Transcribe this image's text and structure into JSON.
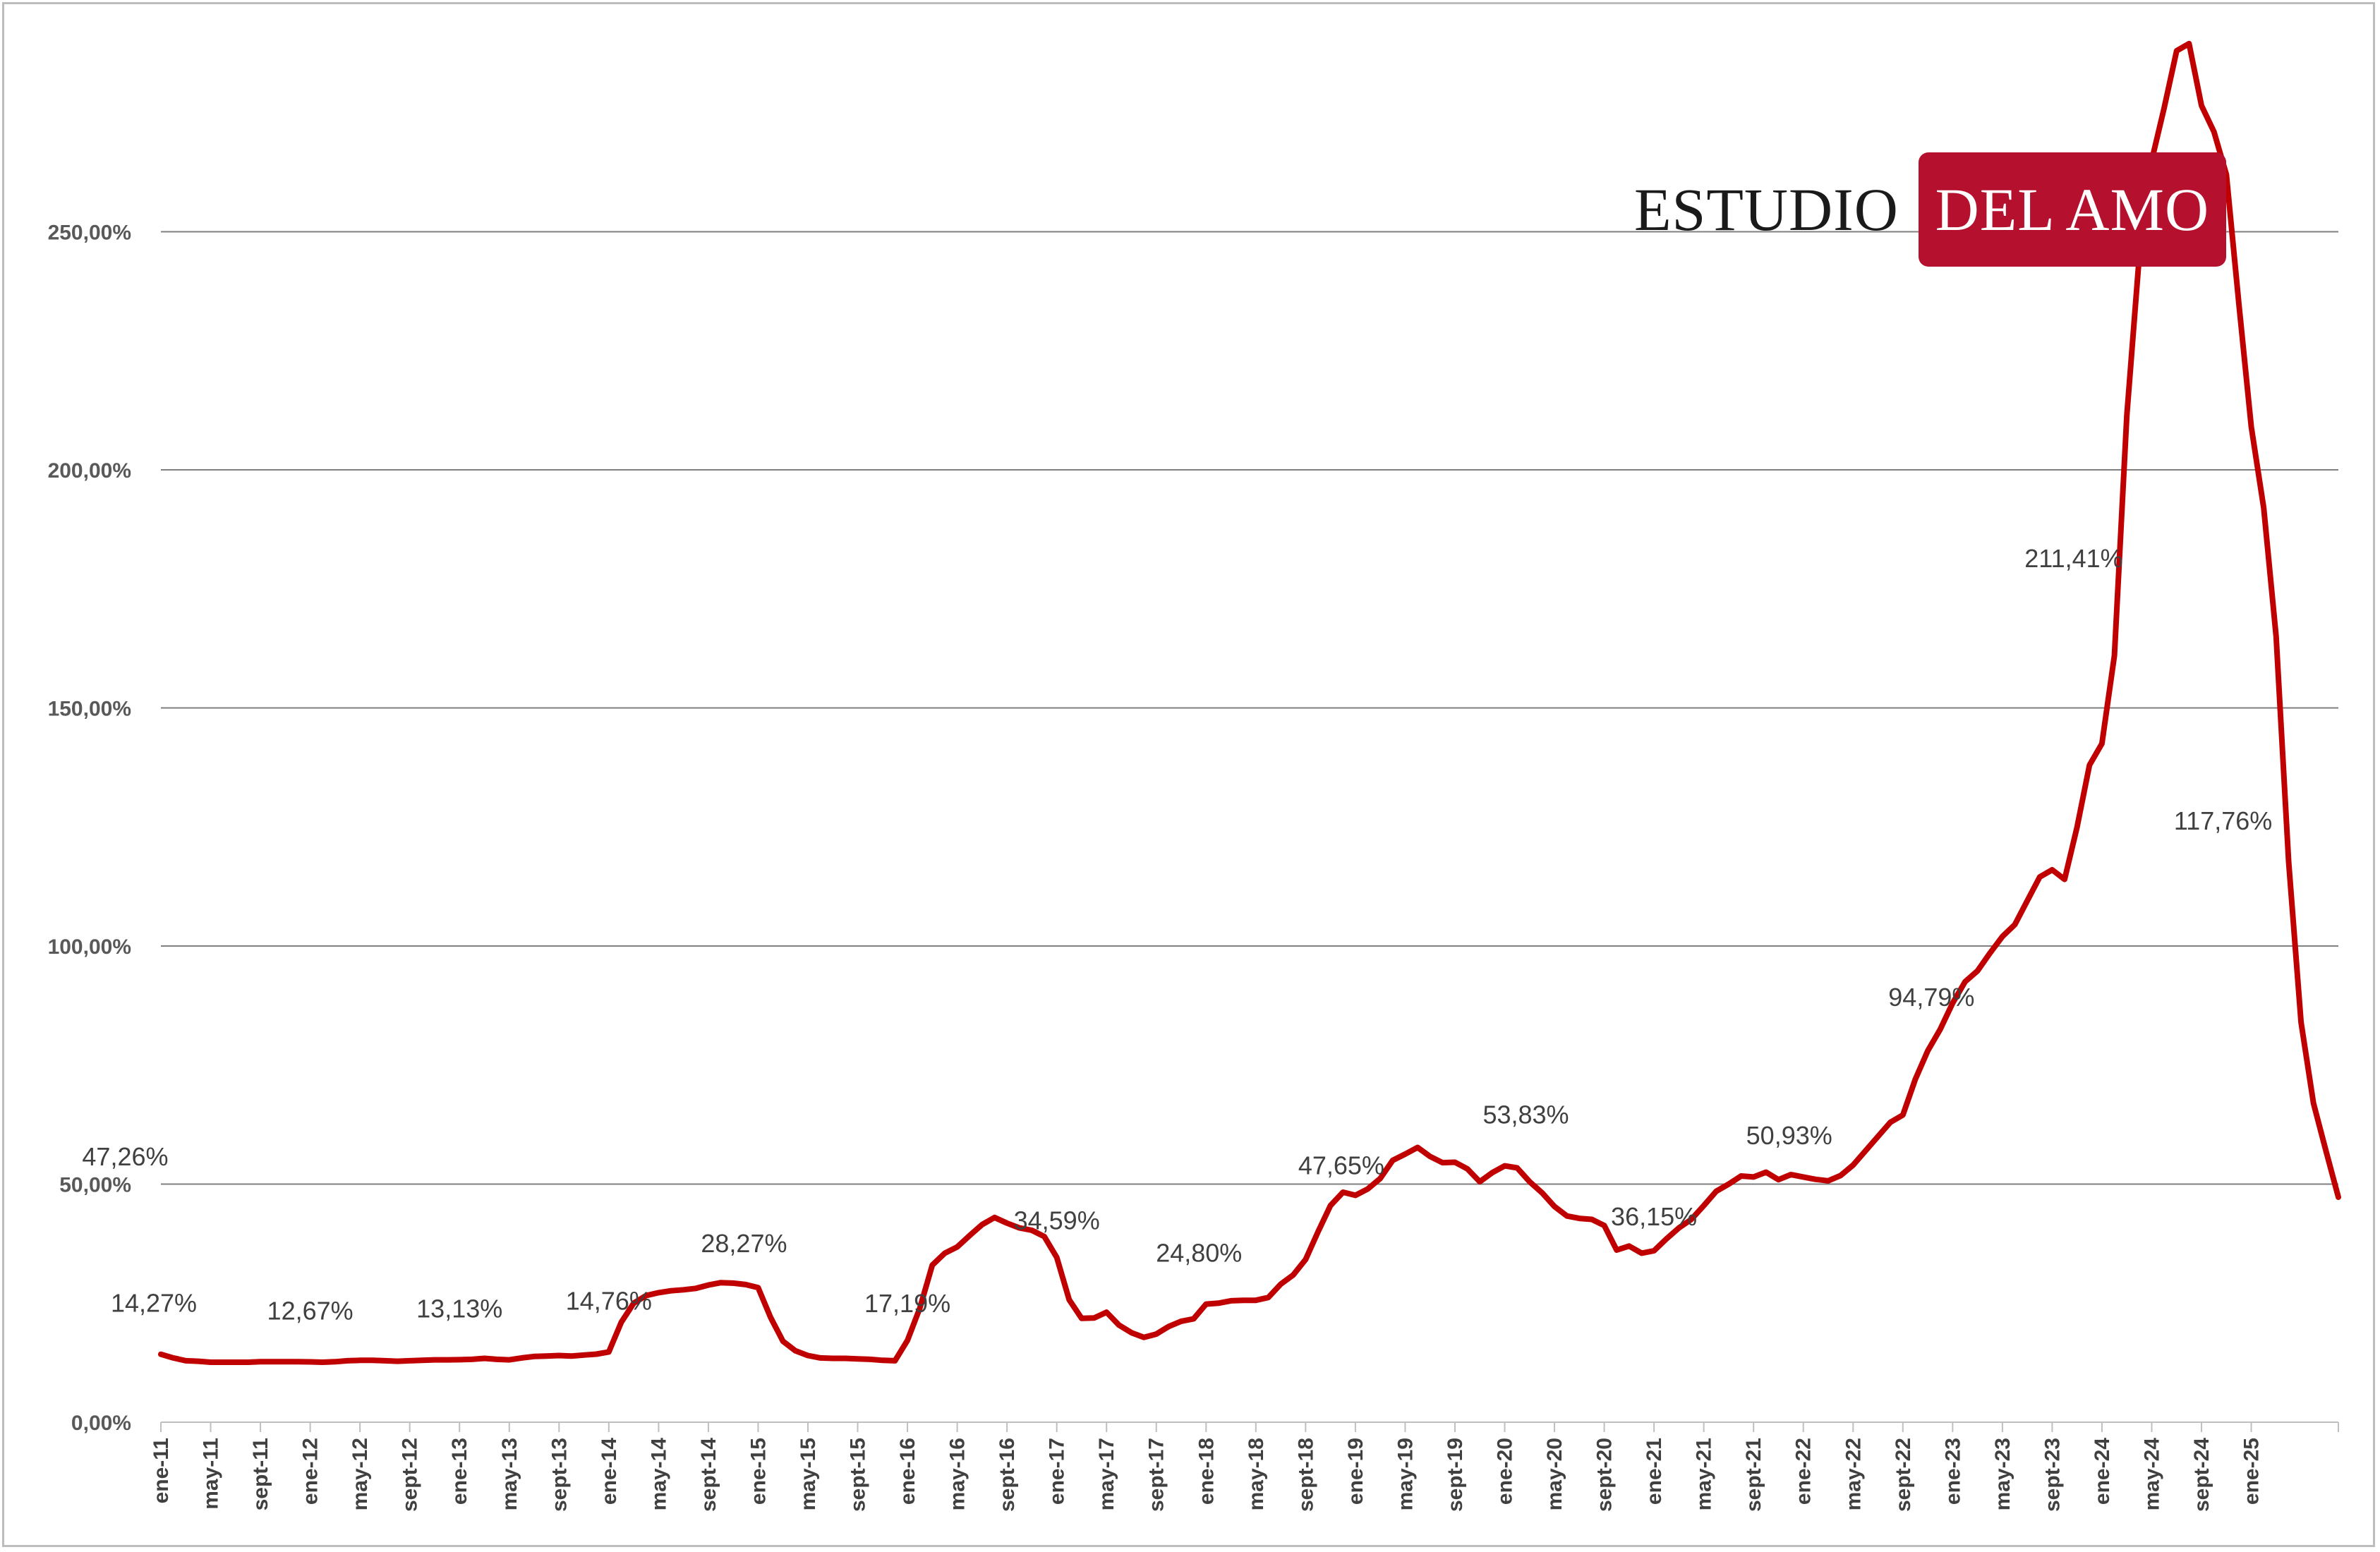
{
  "logo": {
    "left_text": "ESTUDIO",
    "right_text": "DEL AMO"
  },
  "colors": {
    "line": "#c00000",
    "grid": "#7f7f7f",
    "logo_bg": "#b5102e"
  },
  "chart_data": {
    "type": "line",
    "title": "",
    "xlabel": "",
    "ylabel": "",
    "ylim": [
      0,
      290
    ],
    "y_ticks": [
      "0,00%",
      "50,00%",
      "100,00%",
      "150,00%",
      "200,00%",
      "250,00%"
    ],
    "y_tick_values": [
      0,
      50,
      100,
      150,
      200,
      250
    ],
    "grid": "horizontal",
    "legend": "none",
    "x_tick_labels": [
      "ene-11",
      "may-11",
      "sept-11",
      "ene-12",
      "may-12",
      "sept-12",
      "ene-13",
      "may-13",
      "sept-13",
      "ene-14",
      "may-14",
      "sept-14",
      "ene-15",
      "may-15",
      "sept-15",
      "ene-16",
      "may-16",
      "sept-16",
      "ene-17",
      "may-17",
      "sept-17",
      "ene-18",
      "may-18",
      "sept-18",
      "ene-19",
      "may-19",
      "sept-19",
      "ene-20",
      "may-20",
      "sept-20",
      "ene-21",
      "may-21",
      "sept-21",
      "ene-22",
      "may-22",
      "sept-22",
      "ene-23",
      "may-23",
      "sept-23",
      "ene-24",
      "may-24",
      "sept-24",
      "ene-25"
    ],
    "x_start": "ene-11",
    "series": [
      {
        "values": [
          14.27,
          13.5,
          12.9,
          12.8,
          12.6,
          12.6,
          12.6,
          12.6,
          12.7,
          12.7,
          12.7,
          12.7,
          12.67,
          12.6,
          12.7,
          12.9,
          13.0,
          13.0,
          12.9,
          12.8,
          12.9,
          13.0,
          13.1,
          13.1,
          13.13,
          13.2,
          13.4,
          13.2,
          13.1,
          13.5,
          13.8,
          13.9,
          14.0,
          13.9,
          14.1,
          14.3,
          14.76,
          21.0,
          25.0,
          26.6,
          27.2,
          27.6,
          27.8,
          28.1,
          28.8,
          29.3,
          29.2,
          28.9,
          28.27,
          22.0,
          17.0,
          15.0,
          14.0,
          13.5,
          13.4,
          13.4,
          13.3,
          13.2,
          13.0,
          12.9,
          17.19,
          24.0,
          33.0,
          35.5,
          36.8,
          39.2,
          41.5,
          43.0,
          41.8,
          40.8,
          40.3,
          39.0,
          34.59,
          25.7,
          21.8,
          21.9,
          23.1,
          20.4,
          18.8,
          17.8,
          18.5,
          20.1,
          21.2,
          21.7,
          24.8,
          25.0,
          25.5,
          25.6,
          25.6,
          26.2,
          29.0,
          30.9,
          34.2,
          40.0,
          45.5,
          48.3,
          47.65,
          49.0,
          51.2,
          55.0,
          56.3,
          57.7,
          55.8,
          54.5,
          54.6,
          53.2,
          50.5,
          52.4,
          53.83,
          53.4,
          50.5,
          48.2,
          45.3,
          43.3,
          42.8,
          42.6,
          41.3,
          36.15,
          37.0,
          35.5,
          36.0,
          38.5,
          40.8,
          42.6,
          45.5,
          48.5,
          50.0,
          51.7,
          51.5,
          52.5,
          50.93,
          52.0,
          51.5,
          51.0,
          50.7,
          51.8,
          54.0,
          57.0,
          60.0,
          63.0,
          64.5,
          72.0,
          78.0,
          82.5,
          88.0,
          92.5,
          94.79,
          98.5,
          102.0,
          104.5,
          109.5,
          114.5,
          116.0,
          114.0,
          125.0,
          138.0,
          142.5,
          161.0,
          211.41,
          245.0,
          265.0,
          276.0,
          288.0,
          289.5,
          276.5,
          271.0,
          262.0,
          235.0,
          209.0,
          192.0,
          165.0,
          117.76,
          84.0,
          67.0,
          57.0,
          47.26
        ]
      }
    ],
    "data_labels": [
      {
        "text": "14,27%",
        "x": "ene-11",
        "y": 14.27
      },
      {
        "text": "12,67%",
        "x": "ene-12",
        "y": 12.67
      },
      {
        "text": "13,13%",
        "x": "ene-13",
        "y": 13.13
      },
      {
        "text": "14,76%",
        "x": "ene-14",
        "y": 14.76
      },
      {
        "text": "28,27%",
        "x": "ene-15",
        "y": 28.27
      },
      {
        "text": "17,19%",
        "x": "ene-16",
        "y": 17.19
      },
      {
        "text": "34,59%",
        "x": "ene-17",
        "y": 34.59
      },
      {
        "text": "24,80%",
        "x": "ene-18",
        "y": 24.8
      },
      {
        "text": "47,65%",
        "x": "ene-19",
        "y": 47.65
      },
      {
        "text": "53,83%",
        "x": "ene-20",
        "y": 53.83
      },
      {
        "text": "36,15%",
        "x": "ene-21",
        "y": 36.15
      },
      {
        "text": "50,93%",
        "x": "ene-22",
        "y": 50.93
      },
      {
        "text": "94,79%",
        "x": "ene-23",
        "y": 94.79
      },
      {
        "text": "211,41%",
        "x": "ene-24",
        "y": 211.41
      },
      {
        "text": "117,76%",
        "x": "ene-25",
        "y": 117.76
      },
      {
        "text": "47,26%",
        "x": "may-25",
        "y": 47.26
      }
    ]
  }
}
